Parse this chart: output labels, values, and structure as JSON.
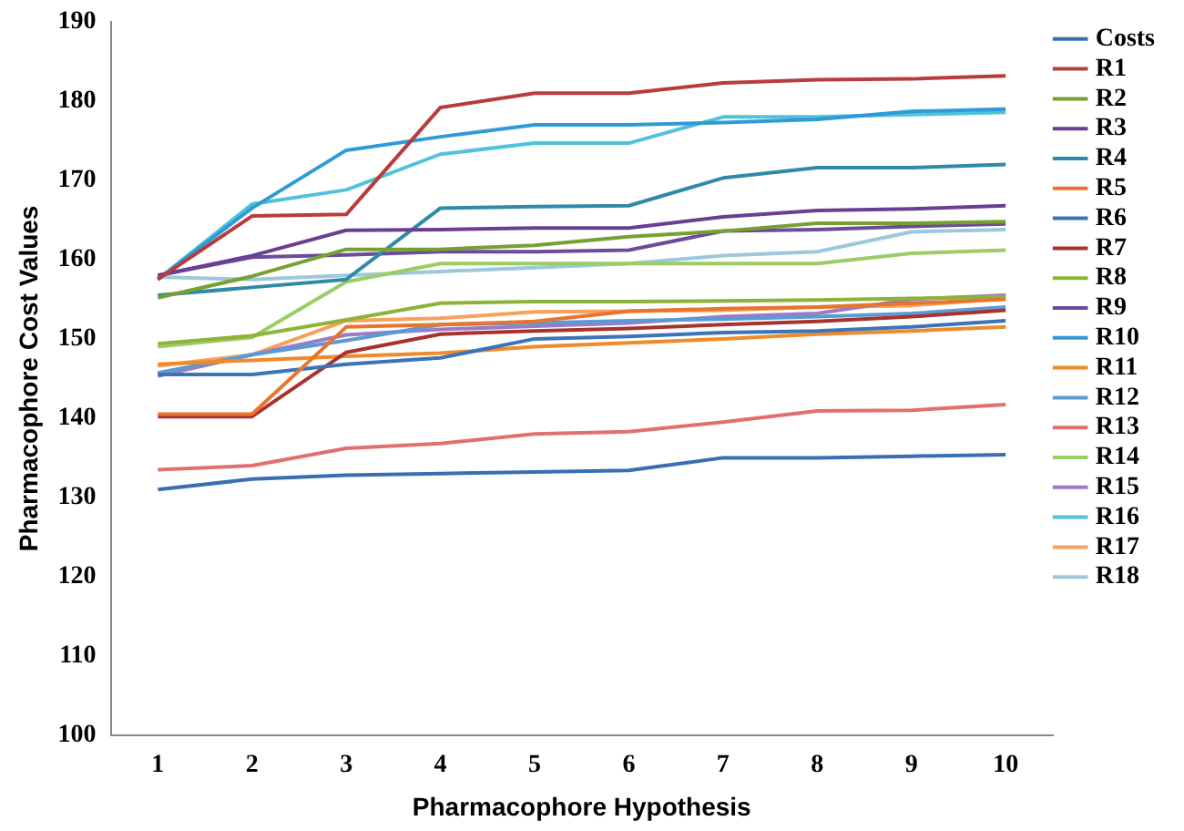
{
  "chart_data": {
    "type": "line",
    "xlabel": "Pharmacophore Hypothesis",
    "ylabel": "Pharmacophore Cost Values",
    "categories": [
      "1",
      "2",
      "3",
      "4",
      "5",
      "6",
      "7",
      "8",
      "9",
      "10"
    ],
    "ylim": [
      100,
      190
    ],
    "yticks": [
      100,
      110,
      120,
      130,
      140,
      150,
      160,
      170,
      180,
      190
    ],
    "grid": false,
    "legend": "right",
    "marker": "none",
    "line_style": "solid",
    "series": [
      {
        "name": "Costs",
        "color": "#3a6eb0",
        "values": [
          131,
          132.3,
          132.8,
          133,
          133.2,
          133.4,
          135,
          135,
          135.2,
          135.4
        ]
      },
      {
        "name": "R1",
        "color": "#b83c3c",
        "values": [
          157.5,
          165.5,
          165.7,
          179.2,
          181,
          181,
          182.3,
          182.7,
          182.8,
          183.2
        ]
      },
      {
        "name": "R2",
        "color": "#77a033",
        "values": [
          155.2,
          157.9,
          161.3,
          161.3,
          161.8,
          162.9,
          163.6,
          164.6,
          164.6,
          164.8
        ]
      },
      {
        "name": "R3",
        "color": "#6a3f8f",
        "values": [
          158,
          160.5,
          163.7,
          163.8,
          164,
          164,
          165.4,
          166.2,
          166.4,
          166.8
        ]
      },
      {
        "name": "R4",
        "color": "#2f8aa8",
        "values": [
          155.5,
          156.5,
          157.5,
          166.5,
          166.7,
          166.8,
          170.3,
          171.6,
          171.6,
          172
        ]
      },
      {
        "name": "R5",
        "color": "#e8742e",
        "values": [
          140.5,
          140.5,
          151.5,
          151.8,
          152.2,
          153.5,
          153.8,
          154,
          154.5,
          155
        ]
      },
      {
        "name": "R6",
        "color": "#3c74b8",
        "values": [
          145.5,
          145.5,
          146.8,
          147.6,
          150,
          150.3,
          150.8,
          151,
          151.5,
          152.3
        ]
      },
      {
        "name": "R7",
        "color": "#a8322e",
        "values": [
          140.2,
          140.2,
          148.3,
          150.6,
          151,
          151.3,
          151.8,
          152.2,
          152.8,
          153.6
        ]
      },
      {
        "name": "R8",
        "color": "#8fb33a",
        "values": [
          149.4,
          150.4,
          152.4,
          154.5,
          154.7,
          154.7,
          154.8,
          154.9,
          155.1,
          155.3
        ]
      },
      {
        "name": "R9",
        "color": "#6b4c9a",
        "values": [
          158,
          160.3,
          160.6,
          161,
          161,
          161.2,
          163.6,
          163.8,
          164.2,
          164.5
        ]
      },
      {
        "name": "R10",
        "color": "#2e9bd6",
        "values": [
          157.5,
          166.5,
          173.8,
          175.5,
          177,
          177,
          177.3,
          177.7,
          178.7,
          179
        ]
      },
      {
        "name": "R11",
        "color": "#f08a2a",
        "values": [
          146.8,
          147.3,
          147.8,
          148.2,
          149,
          149.5,
          150,
          150.6,
          151,
          151.5
        ]
      },
      {
        "name": "R12",
        "color": "#5b9bd5",
        "values": [
          145.7,
          148,
          149.8,
          151.8,
          152,
          152.3,
          152.5,
          152.8,
          153.2,
          154
        ]
      },
      {
        "name": "R13",
        "color": "#e07070",
        "values": [
          133.5,
          134,
          136.2,
          136.8,
          138,
          138.3,
          139.5,
          140.9,
          141,
          141.7
        ]
      },
      {
        "name": "R14",
        "color": "#9ccc65",
        "values": [
          149,
          150.2,
          157.2,
          159.5,
          159.5,
          159.5,
          159.5,
          159.5,
          160.8,
          161.2
        ]
      },
      {
        "name": "R15",
        "color": "#9b7bc4",
        "values": [
          145.3,
          148,
          150.5,
          151.2,
          151.6,
          152,
          152.8,
          153.2,
          155,
          155.5
        ]
      },
      {
        "name": "R16",
        "color": "#4fc3d8",
        "values": [
          157.5,
          167,
          168.8,
          173.3,
          174.7,
          174.7,
          178,
          178,
          178.3,
          178.6
        ]
      },
      {
        "name": "R17",
        "color": "#f9a05a",
        "values": [
          146.6,
          148,
          152.3,
          152.6,
          153.4,
          153.5,
          153.6,
          154,
          154.2,
          155.1
        ]
      },
      {
        "name": "R18",
        "color": "#9cc8dc",
        "values": [
          157.8,
          157.5,
          158,
          158.5,
          159,
          159.5,
          160.5,
          161,
          163.5,
          163.8
        ]
      }
    ]
  }
}
